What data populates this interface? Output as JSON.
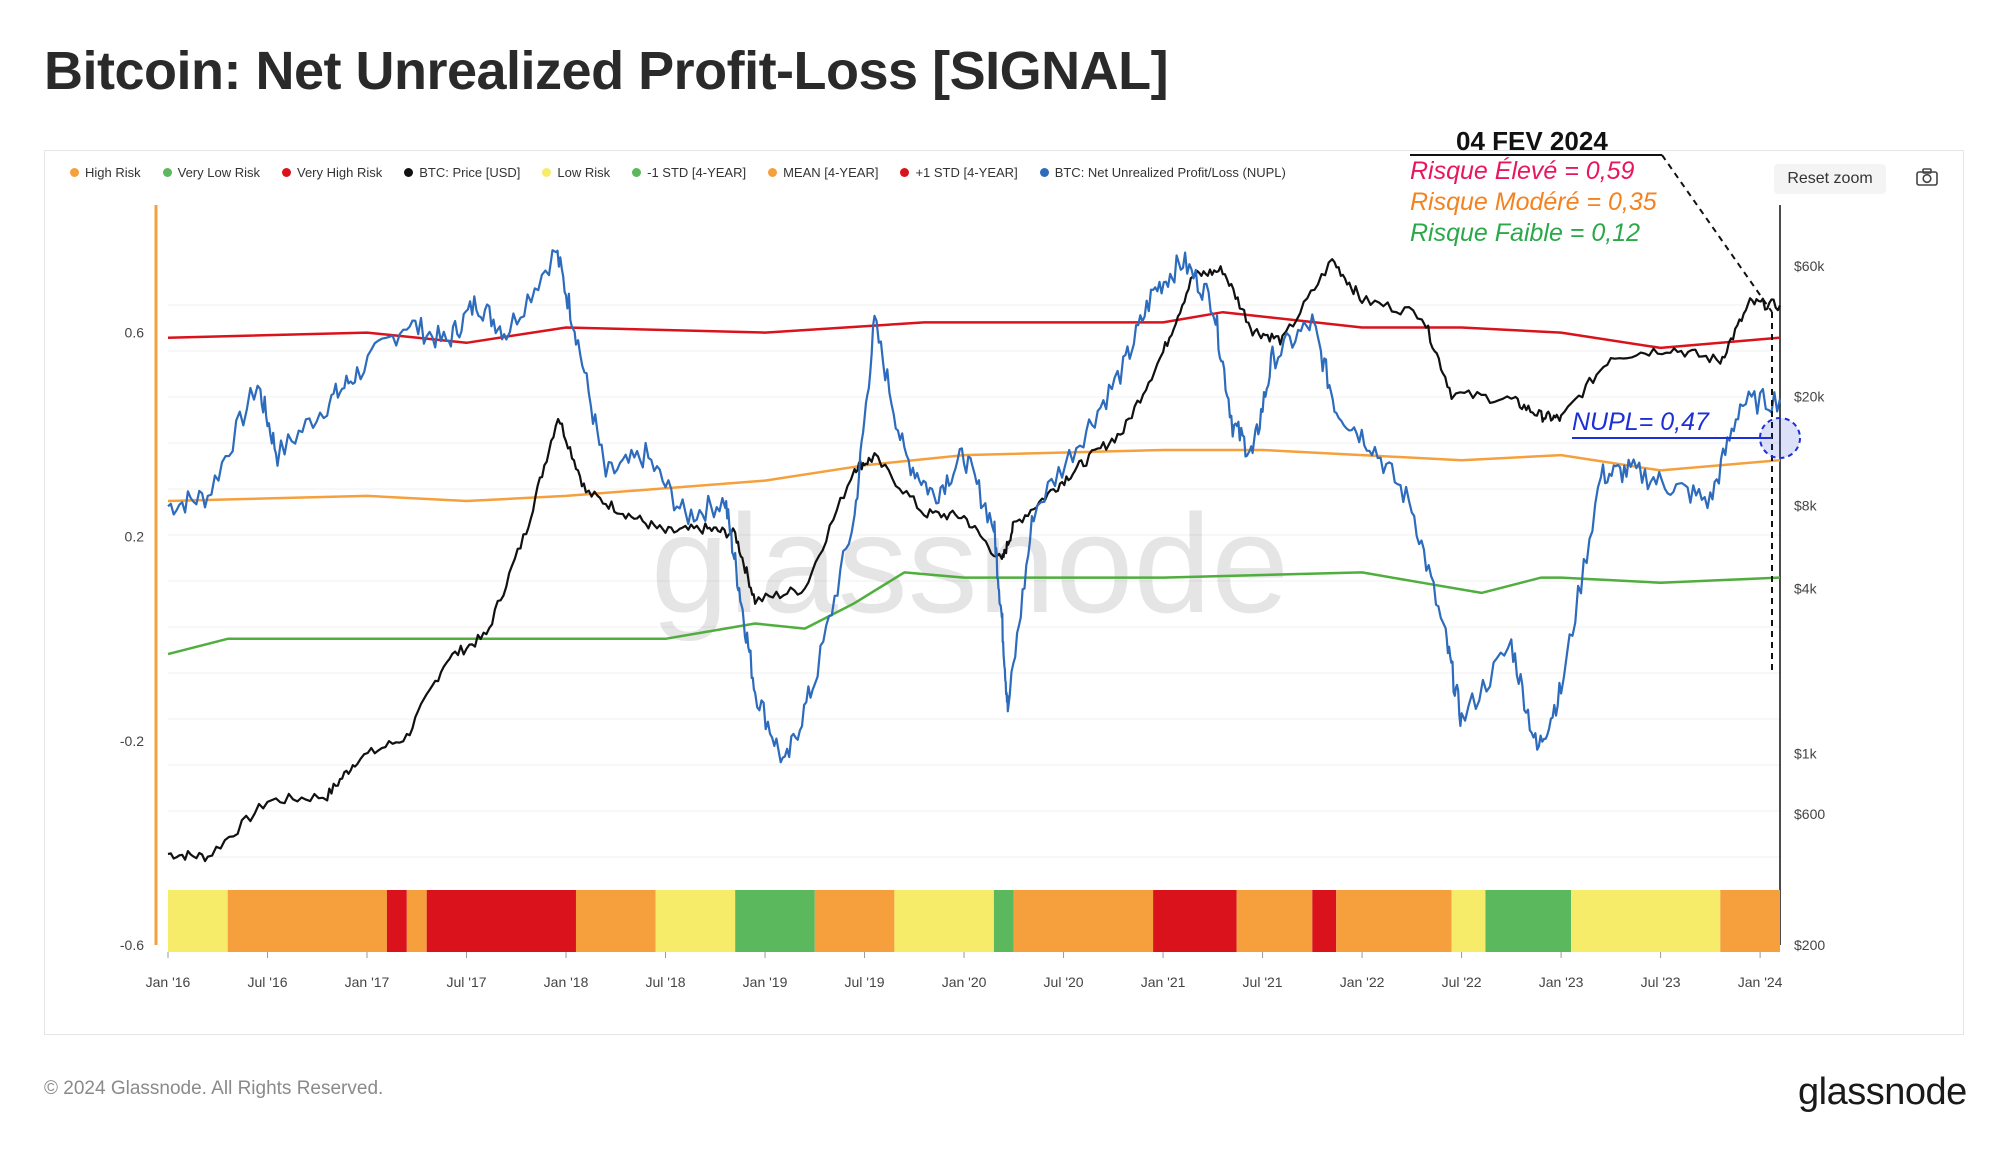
{
  "title": "Bitcoin: Net Unrealized Profit-Loss [SIGNAL]",
  "legend": [
    {
      "label": "High Risk",
      "color": "#f5a03c"
    },
    {
      "label": "Very Low Risk",
      "color": "#5cb85c"
    },
    {
      "label": "Very High Risk",
      "color": "#d9121b"
    },
    {
      "label": "BTC: Price [USD]",
      "color": "#111111"
    },
    {
      "label": "Low Risk",
      "color": "#f7ec6a"
    },
    {
      "label": "-1 STD [4-YEAR]",
      "color": "#5cb85c"
    },
    {
      "label": "MEAN [4-YEAR]",
      "color": "#f5a03c"
    },
    {
      "label": "+1 STD [4-YEAR]",
      "color": "#d9121b"
    },
    {
      "label": "BTC: Net Unrealized Profit/Loss (NUPL)",
      "color": "#2d6bbd"
    }
  ],
  "reset_zoom": "Reset zoom",
  "camera_icon": "camera-icon",
  "annotation": {
    "date": "04 FEV 2024",
    "high": "Risque Élevé = 0,59",
    "moderate": "Risque Modéré = 0,35",
    "low": "Risque Faible = 0,12",
    "nupl": "NUPL= 0,47",
    "colors": {
      "high": "#e8175d",
      "moderate": "#f5821f",
      "low": "#2aa84a",
      "nupl": "#1d2fd6"
    }
  },
  "watermark": "glassnode",
  "footer": {
    "copyright": "© 2024 Glassnode. All Rights Reserved.",
    "brand": "glassnode"
  },
  "chart_data": {
    "type": "line",
    "title": "Bitcoin: Net Unrealized Profit-Loss [SIGNAL]",
    "x_range": [
      2016.0,
      2024.1
    ],
    "x_ticks": [
      {
        "label": "Jan '16",
        "t": 2016.0
      },
      {
        "label": "Jul '16",
        "t": 2016.5
      },
      {
        "label": "Jan '17",
        "t": 2017.0
      },
      {
        "label": "Jul '17",
        "t": 2017.5
      },
      {
        "label": "Jan '18",
        "t": 2018.0
      },
      {
        "label": "Jul '18",
        "t": 2018.5
      },
      {
        "label": "Jan '19",
        "t": 2019.0
      },
      {
        "label": "Jul '19",
        "t": 2019.5
      },
      {
        "label": "Jan '20",
        "t": 2020.0
      },
      {
        "label": "Jul '20",
        "t": 2020.5
      },
      {
        "label": "Jan '21",
        "t": 2021.0
      },
      {
        "label": "Jul '21",
        "t": 2021.5
      },
      {
        "label": "Jan '22",
        "t": 2022.0
      },
      {
        "label": "Jul '22",
        "t": 2022.5
      },
      {
        "label": "Jan '23",
        "t": 2023.0
      },
      {
        "label": "Jul '23",
        "t": 2023.5
      },
      {
        "label": "Jan '24",
        "t": 2024.0
      }
    ],
    "y_left": {
      "ylim": [
        -0.6,
        0.85
      ],
      "ticks": [
        {
          "label": "0.6",
          "v": 0.6
        },
        {
          "label": "0.2",
          "v": 0.2
        },
        {
          "label": "-0.2",
          "v": -0.2
        },
        {
          "label": "-0.6",
          "v": -0.6
        }
      ]
    },
    "y_right": {
      "scale": "log",
      "ylim": [
        200,
        100000
      ],
      "ticks": [
        {
          "label": "$60k",
          "v": 60000
        },
        {
          "label": "$20k",
          "v": 20000
        },
        {
          "label": "$8k",
          "v": 8000
        },
        {
          "label": "$4k",
          "v": 4000
        },
        {
          "label": "$1k",
          "v": 1000
        },
        {
          "label": "$600",
          "v": 600
        },
        {
          "label": "$200",
          "v": 200
        }
      ]
    },
    "series": [
      {
        "name": "BTC: Net Unrealized Profit/Loss (NUPL)",
        "axis": "left",
        "color": "#2d6bbd",
        "x": [
          2016.0,
          2016.2,
          2016.45,
          2016.55,
          2016.8,
          2016.95,
          2017.2,
          2017.4,
          2017.55,
          2017.7,
          2017.95,
          2018.05,
          2018.2,
          2018.4,
          2018.6,
          2018.8,
          2018.87,
          2018.95,
          2019.1,
          2019.25,
          2019.45,
          2019.55,
          2019.7,
          2019.85,
          2020.0,
          2020.15,
          2020.19,
          2020.22,
          2020.35,
          2020.6,
          2020.8,
          2020.95,
          2021.1,
          2021.25,
          2021.35,
          2021.45,
          2021.55,
          2021.75,
          2021.87,
          2022.05,
          2022.25,
          2022.42,
          2022.5,
          2022.75,
          2022.88,
          2023.0,
          2023.2,
          2023.35,
          2023.55,
          2023.75,
          2023.9,
          2024.1
        ],
        "values": [
          0.26,
          0.28,
          0.5,
          0.36,
          0.46,
          0.52,
          0.62,
          0.58,
          0.66,
          0.6,
          0.76,
          0.6,
          0.32,
          0.36,
          0.24,
          0.27,
          0.1,
          -0.1,
          -0.25,
          -0.08,
          0.24,
          0.62,
          0.36,
          0.28,
          0.36,
          0.22,
          0.04,
          -0.14,
          0.25,
          0.4,
          0.53,
          0.68,
          0.74,
          0.66,
          0.42,
          0.36,
          0.55,
          0.62,
          0.45,
          0.38,
          0.26,
          0.0,
          -0.16,
          -0.01,
          -0.22,
          -0.1,
          0.32,
          0.33,
          0.3,
          0.27,
          0.46,
          0.47
        ]
      },
      {
        "name": "BTC: Price [USD]",
        "axis": "right",
        "color": "#111111",
        "x": [
          2016.0,
          2016.2,
          2016.5,
          2016.8,
          2016.95,
          2017.2,
          2017.4,
          2017.6,
          2017.8,
          2017.96,
          2018.1,
          2018.3,
          2018.5,
          2018.7,
          2018.85,
          2018.95,
          2019.2,
          2019.45,
          2019.55,
          2019.8,
          2020.0,
          2020.19,
          2020.25,
          2020.45,
          2020.6,
          2020.8,
          2021.0,
          2021.15,
          2021.3,
          2021.45,
          2021.6,
          2021.85,
          2022.0,
          2022.3,
          2022.45,
          2022.75,
          2022.9,
          2023.0,
          2023.25,
          2023.55,
          2023.8,
          2023.95,
          2024.1
        ],
        "values": [
          430,
          420,
          670,
          700,
          950,
          1150,
          2200,
          2700,
          6500,
          17000,
          9000,
          7500,
          6400,
          6600,
          6300,
          3600,
          4000,
          11000,
          12000,
          7500,
          7300,
          5000,
          6800,
          9200,
          11500,
          15000,
          29000,
          55000,
          58000,
          35000,
          32000,
          63000,
          45000,
          40000,
          20500,
          19500,
          17000,
          16600,
          28000,
          30000,
          27000,
          44000,
          43000
        ]
      },
      {
        "name": "+1 STD [4-YEAR]",
        "axis": "left",
        "color": "#d9121b",
        "x": [
          2016.0,
          2017.0,
          2017.5,
          2018.0,
          2019.0,
          2019.8,
          2020.5,
          2021.0,
          2021.3,
          2022.0,
          2022.5,
          2023.0,
          2023.5,
          2024.1
        ],
        "values": [
          0.59,
          0.6,
          0.58,
          0.61,
          0.6,
          0.62,
          0.62,
          0.62,
          0.64,
          0.61,
          0.61,
          0.6,
          0.57,
          0.59
        ]
      },
      {
        "name": "MEAN [4-YEAR]",
        "axis": "left",
        "color": "#f5a03c",
        "x": [
          2016.0,
          2017.0,
          2017.5,
          2018.0,
          2019.0,
          2019.5,
          2020.0,
          2021.0,
          2021.5,
          2022.0,
          2022.5,
          2023.0,
          2023.5,
          2024.1
        ],
        "values": [
          0.27,
          0.28,
          0.27,
          0.28,
          0.31,
          0.34,
          0.36,
          0.37,
          0.37,
          0.36,
          0.35,
          0.36,
          0.33,
          0.35
        ]
      },
      {
        "name": "-1 STD [4-YEAR]",
        "axis": "left",
        "color": "#4fae3d",
        "x": [
          2016.0,
          2016.3,
          2017.0,
          2018.0,
          2018.5,
          2018.95,
          2019.2,
          2019.45,
          2019.7,
          2020.0,
          2021.0,
          2022.0,
          2022.3,
          2022.6,
          2022.9,
          2023.0,
          2023.5,
          2024.1
        ],
        "values": [
          -0.03,
          0.0,
          0.0,
          0.0,
          0.0,
          0.03,
          0.02,
          0.07,
          0.13,
          0.12,
          0.12,
          0.13,
          0.11,
          0.09,
          0.12,
          0.12,
          0.11,
          0.12
        ]
      }
    ],
    "risk_bands": [
      {
        "from": 2016.0,
        "to": 2016.3,
        "risk": "Low Risk",
        "color": "#f7ec6a"
      },
      {
        "from": 2016.3,
        "to": 2017.1,
        "risk": "High Risk",
        "color": "#f5a03c"
      },
      {
        "from": 2017.1,
        "to": 2017.2,
        "risk": "Very High Risk",
        "color": "#d9121b"
      },
      {
        "from": 2017.2,
        "to": 2017.3,
        "risk": "High Risk",
        "color": "#f5a03c"
      },
      {
        "from": 2017.3,
        "to": 2018.05,
        "risk": "Very High Risk",
        "color": "#d9121b"
      },
      {
        "from": 2018.05,
        "to": 2018.45,
        "risk": "High Risk",
        "color": "#f5a03c"
      },
      {
        "from": 2018.45,
        "to": 2018.85,
        "risk": "Low Risk",
        "color": "#f7ec6a"
      },
      {
        "from": 2018.85,
        "to": 2019.25,
        "risk": "Very Low Risk",
        "color": "#5cb85c"
      },
      {
        "from": 2019.25,
        "to": 2019.65,
        "risk": "High Risk",
        "color": "#f5a03c"
      },
      {
        "from": 2019.65,
        "to": 2020.15,
        "risk": "Low Risk",
        "color": "#f7ec6a"
      },
      {
        "from": 2020.15,
        "to": 2020.25,
        "risk": "Very Low Risk",
        "color": "#5cb85c"
      },
      {
        "from": 2020.25,
        "to": 2020.95,
        "risk": "High Risk",
        "color": "#f5a03c"
      },
      {
        "from": 2020.95,
        "to": 2021.37,
        "risk": "Very High Risk",
        "color": "#d9121b"
      },
      {
        "from": 2021.37,
        "to": 2021.75,
        "risk": "High Risk",
        "color": "#f5a03c"
      },
      {
        "from": 2021.75,
        "to": 2021.87,
        "risk": "Very High Risk",
        "color": "#d9121b"
      },
      {
        "from": 2021.87,
        "to": 2022.45,
        "risk": "High Risk",
        "color": "#f5a03c"
      },
      {
        "from": 2022.45,
        "to": 2022.62,
        "risk": "Low Risk",
        "color": "#f7ec6a"
      },
      {
        "from": 2022.62,
        "to": 2023.05,
        "risk": "Very Low Risk",
        "color": "#5cb85c"
      },
      {
        "from": 2023.05,
        "to": 2023.8,
        "risk": "Low Risk",
        "color": "#f7ec6a"
      },
      {
        "from": 2023.8,
        "to": 2024.1,
        "risk": "High Risk",
        "color": "#f5a03c"
      }
    ]
  }
}
